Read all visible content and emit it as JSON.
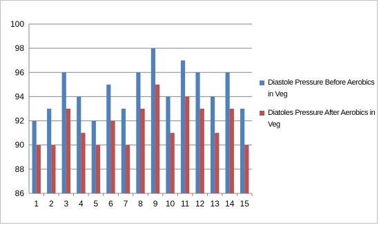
{
  "chart_data": {
    "type": "bar",
    "categories": [
      "1",
      "2",
      "3",
      "4",
      "5",
      "6",
      "7",
      "8",
      "9",
      "10",
      "11",
      "12",
      "13",
      "14",
      "15"
    ],
    "series": [
      {
        "name": "Diastole Pressure Before Aerobics in Veg",
        "color": "#4f81bd",
        "values": [
          92,
          93,
          96,
          94,
          92,
          95,
          93,
          96,
          98,
          94,
          97,
          96,
          94,
          96,
          93
        ]
      },
      {
        "name": "Diatoles Pressure After Aerobics in Veg",
        "color": "#c0504d",
        "values": [
          90,
          90,
          93,
          91,
          90,
          92,
          90,
          93,
          95,
          91,
          94,
          93,
          91,
          93,
          90
        ]
      }
    ],
    "ylim": [
      86,
      100
    ],
    "yticks": [
      "86",
      "88",
      "90",
      "92",
      "94",
      "96",
      "98",
      "100"
    ],
    "grid": true,
    "legend_position": "right"
  }
}
